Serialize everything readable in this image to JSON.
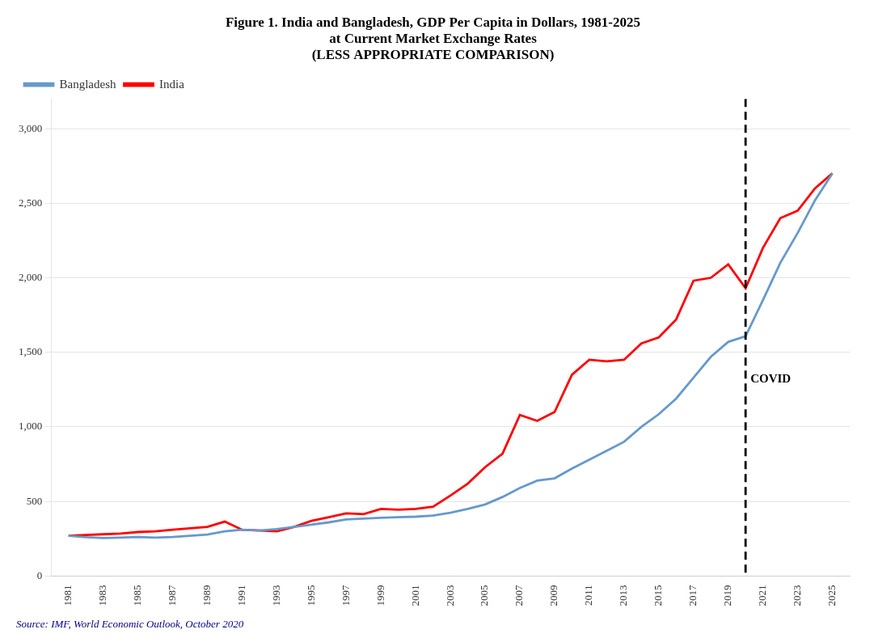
{
  "chart_data": {
    "type": "line",
    "title": [
      "Figure 1. India and Bangladesh, GDP Per Capita in Dollars, 1981-2025",
      "at Current Market Exchange Rates",
      "(LESS APPROPRIATE COMPARISON)"
    ],
    "source": "Source: IMF, World Economic Outlook, October 2020",
    "x": [
      1981,
      1982,
      1983,
      1984,
      1985,
      1986,
      1987,
      1988,
      1989,
      1990,
      1991,
      1992,
      1993,
      1994,
      1995,
      1996,
      1997,
      1998,
      1999,
      2000,
      2001,
      2002,
      2003,
      2004,
      2005,
      2006,
      2007,
      2008,
      2009,
      2010,
      2011,
      2012,
      2013,
      2014,
      2015,
      2016,
      2017,
      2018,
      2019,
      2020,
      2021,
      2022,
      2023,
      2024,
      2025
    ],
    "series": [
      {
        "name": "Bangladesh",
        "color": "#6699CC",
        "values": [
          270,
          260,
          255,
          258,
          262,
          258,
          262,
          270,
          278,
          300,
          310,
          305,
          315,
          330,
          345,
          360,
          380,
          385,
          390,
          395,
          398,
          405,
          425,
          450,
          480,
          530,
          590,
          640,
          655,
          720,
          780,
          840,
          900,
          1000,
          1085,
          1190,
          1330,
          1470,
          1570,
          1608,
          1850,
          2100,
          2300,
          2520,
          2700
        ]
      },
      {
        "name": "India",
        "color": "#FF0000",
        "values": [
          270,
          275,
          280,
          285,
          295,
          300,
          310,
          320,
          330,
          365,
          310,
          305,
          300,
          330,
          370,
          395,
          420,
          415,
          450,
          445,
          450,
          465,
          540,
          620,
          730,
          820,
          1080,
          1040,
          1100,
          1350,
          1450,
          1440,
          1450,
          1560,
          1600,
          1720,
          1980,
          2000,
          2090,
          1930,
          2200,
          2400,
          2450,
          2600,
          2700
        ]
      }
    ],
    "xlim": [
      1980,
      2026
    ],
    "xticks": [
      1981,
      1983,
      1985,
      1987,
      1989,
      1991,
      1993,
      1995,
      1997,
      1999,
      2001,
      2003,
      2005,
      2007,
      2009,
      2011,
      2013,
      2015,
      2017,
      2019,
      2021,
      2023,
      2025
    ],
    "ylim": [
      0,
      3200
    ],
    "yticks": [
      0,
      500,
      {
        "value": 1000,
        "label": "1,000"
      },
      {
        "value": 1500,
        "label": "1,500"
      },
      {
        "value": 2000,
        "label": "2,000"
      },
      {
        "value": 2500,
        "label": "2,500"
      },
      {
        "value": 3000,
        "label": "3,000"
      }
    ],
    "grid": "y",
    "legend": "upper left",
    "annotations": [
      {
        "type": "vline",
        "x": 2020,
        "label": "COVID",
        "line_style": "dashed"
      }
    ]
  }
}
